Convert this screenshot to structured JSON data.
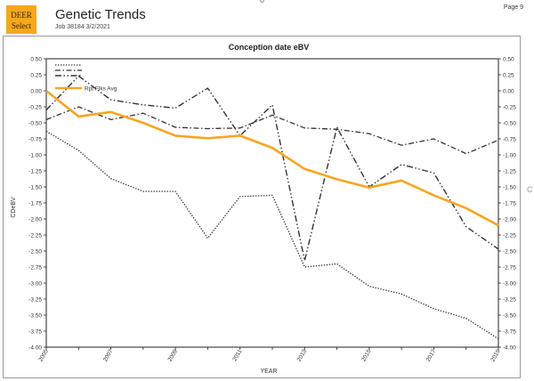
{
  "header": {
    "logo_line1": "DEER",
    "logo_line2": "Select",
    "title": "Genetic Trends",
    "job": "Job 38184 3/2/2021",
    "page": "Page 9",
    "stray_mark": "o",
    "stray_mark_right": "C"
  },
  "colors": {
    "average": "#f5a623",
    "lines": "#333333",
    "logo_bg": "#f4a81d"
  },
  "chart_data": {
    "type": "line",
    "title": "Conception date eBV",
    "xlabel": "YEAR",
    "ylabel": "CDeBV",
    "x": [
      2005,
      2006,
      2007,
      2008,
      2009,
      2010,
      2011,
      2012,
      2013,
      2014,
      2015,
      2016,
      2017,
      2018,
      2019
    ],
    "x_tick_labels": [
      "2005",
      "2007",
      "2009",
      "2011",
      "2013",
      "2015",
      "2017",
      "2019"
    ],
    "ylim": [
      -4.0,
      0.5
    ],
    "y_ticks": [
      "0.50",
      "0.25",
      "0.00",
      "-0.25",
      "-0.50",
      "-0.75",
      "-1.00",
      "-1.25",
      "-1.50",
      "-1.75",
      "-2.00",
      "-2.25",
      "-2.50",
      "-2.75",
      "-3.00",
      "-3.25",
      "-3.50",
      "-3.75",
      "-4.00"
    ],
    "series": [
      {
        "name": "",
        "style": "dotted",
        "values": [
          -0.63,
          -0.93,
          -1.37,
          -1.57,
          -1.57,
          -2.3,
          -1.65,
          -1.63,
          -2.75,
          -2.7,
          -3.05,
          -3.17,
          -3.4,
          -3.55,
          -3.87
        ]
      },
      {
        "name": "",
        "style": "dashed",
        "values": [
          -0.45,
          -0.25,
          -0.45,
          -0.35,
          -0.57,
          -0.59,
          -0.58,
          -0.38,
          -0.58,
          -0.6,
          -0.67,
          -0.85,
          -0.75,
          -0.98,
          -0.77
        ]
      },
      {
        "name": "",
        "style": "dashdot",
        "values": [
          -0.3,
          0.23,
          -0.14,
          -0.22,
          -0.27,
          0.04,
          -0.7,
          -0.22,
          -2.65,
          -0.57,
          -1.5,
          -1.15,
          -1.28,
          -2.12,
          -2.47
        ]
      },
      {
        "name": "Rpt Flks Avg",
        "style": "solid",
        "values": [
          0.0,
          -0.4,
          -0.33,
          -0.5,
          -0.7,
          -0.74,
          -0.7,
          -0.89,
          -1.22,
          -1.38,
          -1.51,
          -1.4,
          -1.63,
          -1.83,
          -2.1
        ]
      }
    ],
    "legend_position": "top-left",
    "grid": false
  }
}
